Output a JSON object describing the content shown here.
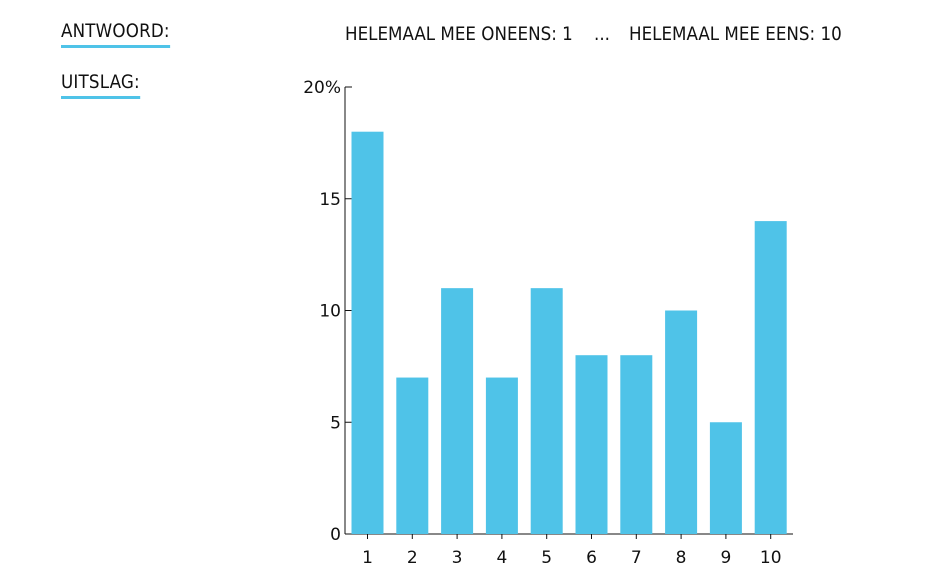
{
  "labels": {
    "answer": "ANTWOORD:",
    "result": "UITSLAG:"
  },
  "scale": {
    "min_text": "HELEMAAL MEE ONEENS: 1",
    "separator": "...",
    "max_text": "HELEMAAL MEE EENS: 10"
  },
  "colors": {
    "bar": "#4fc3e8",
    "underline": "#4fc3e8",
    "axis": "#111111"
  },
  "chart_data": {
    "type": "bar",
    "categories": [
      "1",
      "2",
      "3",
      "4",
      "5",
      "6",
      "7",
      "8",
      "9",
      "10"
    ],
    "values": [
      18,
      7,
      11,
      7,
      11,
      8,
      8,
      10,
      5,
      14
    ],
    "ylim": [
      0,
      20
    ],
    "yticks": [
      0,
      5,
      10,
      15,
      20
    ],
    "ytick_labels": [
      "0",
      "5",
      "10",
      "15",
      "20%"
    ],
    "grid": false,
    "legend": "none"
  }
}
